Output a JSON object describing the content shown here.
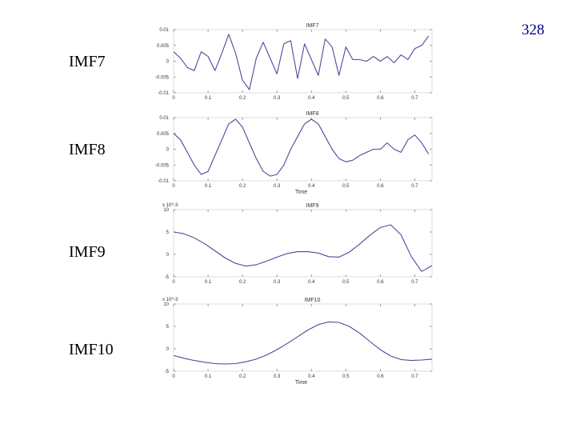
{
  "slide": {
    "page_number": "328"
  },
  "labels": [
    "IMF7",
    "IMF8",
    "IMF9",
    "IMF10"
  ],
  "chart_data": [
    {
      "type": "line",
      "title": "IMF7",
      "xlabel": "",
      "ylabel": "",
      "scale_label": "",
      "xlim": [
        0,
        0.75
      ],
      "ylim": [
        -0.01,
        0.01
      ],
      "x_ticks": [
        0,
        0.1,
        0.2,
        0.3,
        0.4,
        0.5,
        0.6,
        0.7
      ],
      "x_tick_labels": [
        "0",
        "0.1",
        "0.2",
        "0.3",
        "0.4",
        "0.5",
        "0.6",
        "0.7"
      ],
      "y_ticks": [
        0.01,
        0.005,
        0,
        -0.005,
        -0.01
      ],
      "y_tick_labels": [
        "0.01",
        "0.005",
        "0",
        "-0.005",
        "-0.01"
      ],
      "series": [
        {
          "color": "#4a4a9a",
          "x": [
            0,
            0.02,
            0.04,
            0.06,
            0.08,
            0.1,
            0.12,
            0.14,
            0.16,
            0.18,
            0.2,
            0.22,
            0.24,
            0.26,
            0.28,
            0.3,
            0.32,
            0.34,
            0.36,
            0.38,
            0.4,
            0.42,
            0.44,
            0.46,
            0.48,
            0.5,
            0.52,
            0.54,
            0.56,
            0.58,
            0.6,
            0.62,
            0.64,
            0.66,
            0.68,
            0.7,
            0.72,
            0.74
          ],
          "y": [
            0.003,
            0.001,
            -0.002,
            -0.003,
            0.003,
            0.0015,
            -0.003,
            0.0025,
            0.0085,
            0.0025,
            -0.006,
            -0.009,
            0.001,
            0.006,
            0.001,
            -0.004,
            0.0055,
            0.0065,
            -0.0055,
            0.0055,
            0.0005,
            -0.0045,
            0.007,
            0.0045,
            -0.0045,
            0.0045,
            0.0005,
            0.0005,
            0.0,
            0.0015,
            0.0,
            0.0015,
            -0.0005,
            0.002,
            0.0005,
            0.004,
            0.005,
            0.008
          ]
        }
      ]
    },
    {
      "type": "line",
      "title": "IMF8",
      "xlabel": "Time",
      "ylabel": "",
      "scale_label": "",
      "xlim": [
        0,
        0.75
      ],
      "ylim": [
        -0.01,
        0.01
      ],
      "x_ticks": [
        0,
        0.1,
        0.2,
        0.3,
        0.4,
        0.5,
        0.6,
        0.7
      ],
      "x_tick_labels": [
        "0",
        "0.1",
        "0.2",
        "0.3",
        "0.4",
        "0.5",
        "0.6",
        "0.7"
      ],
      "y_ticks": [
        0.01,
        0.005,
        0,
        -0.005,
        -0.01
      ],
      "y_tick_labels": [
        "0.01",
        "0.005",
        "0",
        "-0.005",
        "-0.01"
      ],
      "series": [
        {
          "color": "#4a4a9a",
          "x": [
            0,
            0.02,
            0.04,
            0.06,
            0.08,
            0.1,
            0.12,
            0.14,
            0.16,
            0.18,
            0.2,
            0.22,
            0.24,
            0.26,
            0.28,
            0.3,
            0.32,
            0.34,
            0.36,
            0.38,
            0.4,
            0.42,
            0.44,
            0.46,
            0.48,
            0.5,
            0.52,
            0.54,
            0.56,
            0.58,
            0.6,
            0.62,
            0.64,
            0.66,
            0.68,
            0.7,
            0.72,
            0.74
          ],
          "y": [
            0.005,
            0.003,
            -0.001,
            -0.005,
            -0.008,
            -0.007,
            -0.002,
            0.003,
            0.008,
            0.0095,
            0.007,
            0.002,
            -0.003,
            -0.007,
            -0.0085,
            -0.008,
            -0.005,
            0.0,
            0.004,
            0.008,
            0.0095,
            0.008,
            0.004,
            0.0,
            -0.003,
            -0.004,
            -0.0035,
            -0.002,
            -0.001,
            0.0,
            0.0,
            0.002,
            0.0,
            -0.001,
            0.003,
            0.0045,
            0.002,
            -0.0015
          ]
        }
      ]
    },
    {
      "type": "line",
      "title": "IMF9",
      "xlabel": "",
      "ylabel": "",
      "scale_label": "x 10^-3",
      "xlim": [
        0,
        0.75
      ],
      "ylim": [
        -5,
        10
      ],
      "x_ticks": [
        0,
        0.1,
        0.2,
        0.3,
        0.4,
        0.5,
        0.6,
        0.7
      ],
      "x_tick_labels": [
        "0",
        "0.1",
        "0.2",
        "0.3",
        "0.4",
        "0.5",
        "0.6",
        "0.7"
      ],
      "y_ticks": [
        10,
        5,
        0,
        -5
      ],
      "y_tick_labels": [
        "10",
        "5",
        "0",
        "-5"
      ],
      "series": [
        {
          "color": "#4a4a9a",
          "x": [
            0,
            0.03,
            0.06,
            0.09,
            0.12,
            0.15,
            0.18,
            0.21,
            0.24,
            0.27,
            0.3,
            0.33,
            0.36,
            0.39,
            0.42,
            0.45,
            0.48,
            0.51,
            0.54,
            0.57,
            0.6,
            0.63,
            0.66,
            0.69,
            0.72,
            0.75
          ],
          "y": [
            5.0,
            4.6,
            3.7,
            2.4,
            0.8,
            -0.8,
            -2.0,
            -2.6,
            -2.3,
            -1.5,
            -0.6,
            0.2,
            0.6,
            0.6,
            0.3,
            -0.5,
            -0.6,
            0.5,
            2.3,
            4.3,
            6.0,
            6.6,
            4.4,
            -0.5,
            -3.8,
            -2.5
          ]
        }
      ]
    },
    {
      "type": "line",
      "title": "IMF10",
      "xlabel": "Time",
      "ylabel": "",
      "scale_label": "x 10^-3",
      "xlim": [
        0,
        0.75
      ],
      "ylim": [
        -5,
        10
      ],
      "x_ticks": [
        0,
        0.1,
        0.2,
        0.3,
        0.4,
        0.5,
        0.6,
        0.7
      ],
      "x_tick_labels": [
        "0",
        "0.1",
        "0.2",
        "0.3",
        "0.4",
        "0.5",
        "0.6",
        "0.7"
      ],
      "y_ticks": [
        10,
        5,
        0,
        -5
      ],
      "y_tick_labels": [
        "10",
        "5",
        "0",
        "-5"
      ],
      "series": [
        {
          "color": "#4a4a9a",
          "x": [
            0,
            0.03,
            0.06,
            0.09,
            0.12,
            0.15,
            0.18,
            0.21,
            0.24,
            0.27,
            0.3,
            0.33,
            0.36,
            0.39,
            0.42,
            0.45,
            0.48,
            0.51,
            0.54,
            0.57,
            0.6,
            0.63,
            0.66,
            0.69,
            0.72,
            0.75
          ],
          "y": [
            -1.5,
            -2.1,
            -2.6,
            -3.0,
            -3.3,
            -3.4,
            -3.3,
            -2.9,
            -2.3,
            -1.4,
            -0.2,
            1.2,
            2.7,
            4.2,
            5.4,
            6.0,
            5.9,
            5.0,
            3.5,
            1.6,
            -0.2,
            -1.6,
            -2.4,
            -2.6,
            -2.5,
            -2.3
          ]
        }
      ]
    }
  ]
}
